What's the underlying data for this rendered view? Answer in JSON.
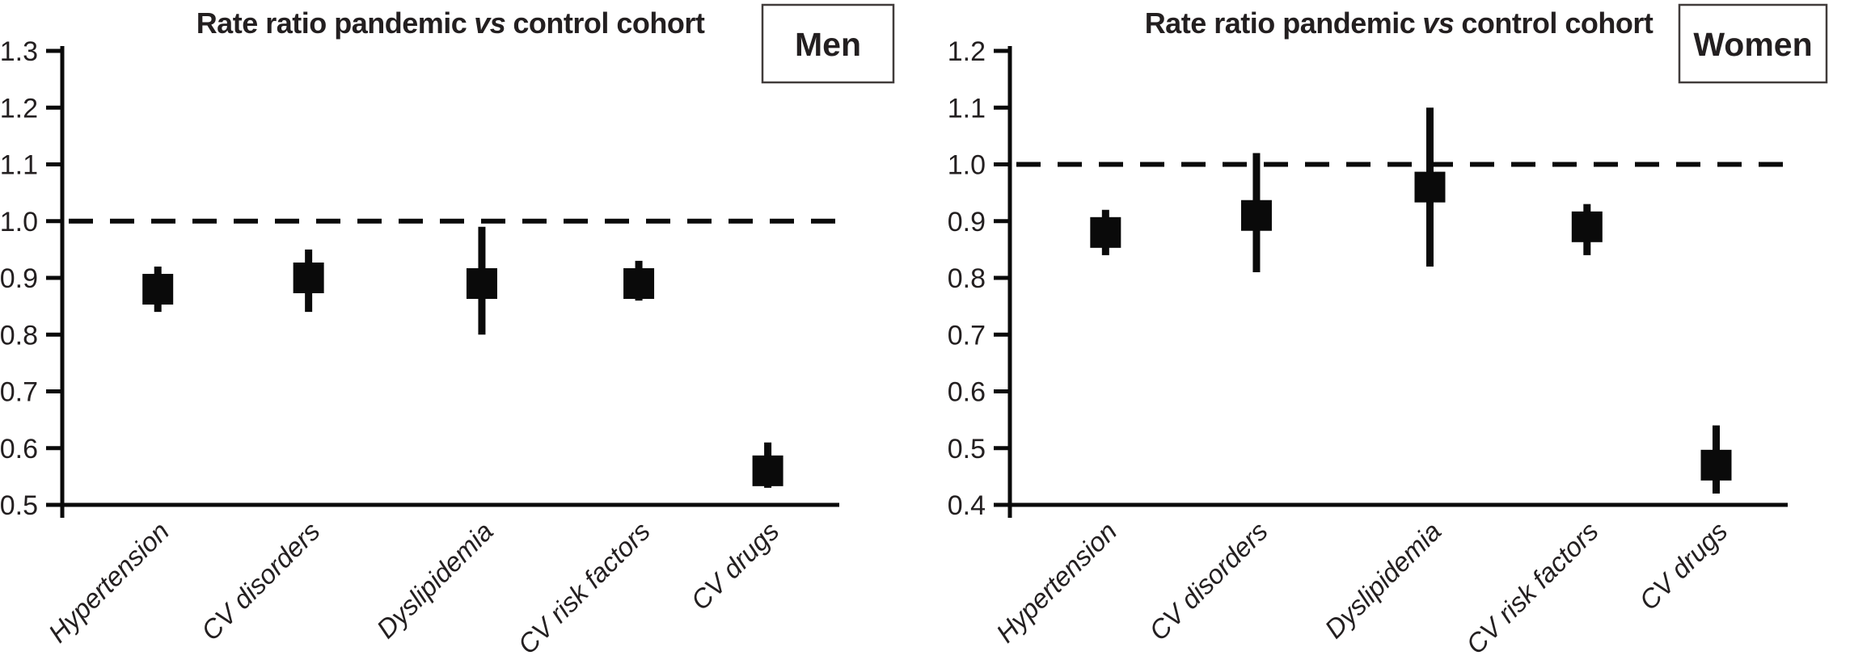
{
  "figure": {
    "background": "#ffffff",
    "ink_color": "#0a0a0a",
    "text_color": "#231f20"
  },
  "chart_data": [
    {
      "type": "scatter",
      "panel_label": "Men",
      "title": {
        "prefix": "Rate ratio pandemic",
        "vs": "vs",
        "suffix": "control cohort"
      },
      "xlabel": "",
      "ylabel": "",
      "ylim": [
        0.5,
        1.3
      ],
      "yticks": [
        0.5,
        0.6,
        0.7,
        0.8,
        0.9,
        1.0,
        1.1,
        1.2,
        1.3
      ],
      "reference_line": 1.0,
      "reference_line_style": "dashed",
      "grid": false,
      "marker": "square",
      "color": "#0a0a0a",
      "categories": [
        "Hypertension",
        "CV disorders",
        "Dyslipidemia",
        "CV risk factors",
        "CV drugs"
      ],
      "points": [
        {
          "category": "Hypertension",
          "value": 0.88,
          "ci_low": 0.84,
          "ci_high": 0.92
        },
        {
          "category": "CV disorders",
          "value": 0.9,
          "ci_low": 0.84,
          "ci_high": 0.95
        },
        {
          "category": "Dyslipidemia",
          "value": 0.89,
          "ci_low": 0.8,
          "ci_high": 0.99
        },
        {
          "category": "CV risk factors",
          "value": 0.89,
          "ci_low": 0.86,
          "ci_high": 0.93
        },
        {
          "category": "CV drugs",
          "value": 0.56,
          "ci_low": 0.53,
          "ci_high": 0.61
        }
      ]
    },
    {
      "type": "scatter",
      "panel_label": "Women",
      "title": {
        "prefix": "Rate ratio pandemic",
        "vs": "vs",
        "suffix": "control cohort"
      },
      "xlabel": "",
      "ylabel": "",
      "ylim": [
        0.4,
        1.2
      ],
      "yticks": [
        0.4,
        0.5,
        0.6,
        0.7,
        0.8,
        0.9,
        1.0,
        1.1,
        1.2
      ],
      "reference_line": 1.0,
      "reference_line_style": "dashed",
      "grid": false,
      "marker": "square",
      "color": "#0a0a0a",
      "categories": [
        "Hypertension",
        "CV disorders",
        "Dyslipidemia",
        "CV risk factors",
        "CV drugs"
      ],
      "points": [
        {
          "category": "Hypertension",
          "value": 0.88,
          "ci_low": 0.84,
          "ci_high": 0.92
        },
        {
          "category": "CV disorders",
          "value": 0.91,
          "ci_low": 0.81,
          "ci_high": 1.02
        },
        {
          "category": "Dyslipidemia",
          "value": 0.96,
          "ci_low": 0.82,
          "ci_high": 1.1
        },
        {
          "category": "CV risk factors",
          "value": 0.89,
          "ci_low": 0.84,
          "ci_high": 0.93
        },
        {
          "category": "CV drugs",
          "value": 0.47,
          "ci_low": 0.42,
          "ci_high": 0.54
        }
      ]
    }
  ]
}
